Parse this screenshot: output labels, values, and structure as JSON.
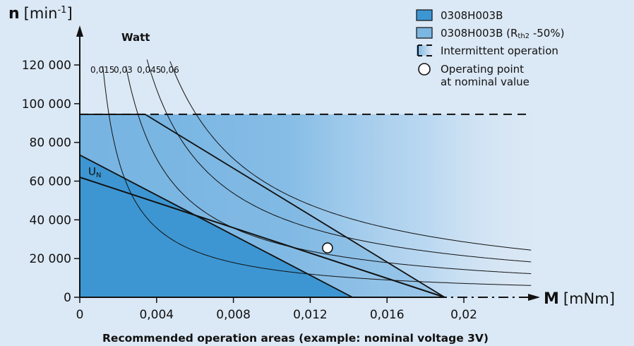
{
  "chart_data": {
    "type": "area",
    "caption": "Recommended operation areas (example: nominal voltage 3V)",
    "y_axis": {
      "title_symbol": "n",
      "title_unit_prefix": "[min",
      "title_unit_sup": "-1",
      "title_unit_suffix": "]",
      "ticks": [
        {
          "value": 0,
          "label": "0"
        },
        {
          "value": 20000,
          "label": "20 000"
        },
        {
          "value": 40000,
          "label": "40 000"
        },
        {
          "value": 60000,
          "label": "60 000"
        },
        {
          "value": 80000,
          "label": "80 000"
        },
        {
          "value": 100000,
          "label": "100 000"
        },
        {
          "value": 120000,
          "label": "120 000"
        }
      ]
    },
    "x_axis": {
      "title_symbol": "M",
      "title_unit": "[mNm]",
      "ticks": [
        {
          "value": 0,
          "label": "0"
        },
        {
          "value": 0.004,
          "label": "0,004"
        },
        {
          "value": 0.008,
          "label": "0,008"
        },
        {
          "value": 0.012,
          "label": "0,012"
        },
        {
          "value": 0.016,
          "label": "0,016"
        },
        {
          "value": 0.02,
          "label": "0,02"
        }
      ]
    },
    "legend": {
      "placement": "top-right",
      "items": [
        {
          "label": "0308H003B",
          "kind": "swatch",
          "color": "#3d96d2"
        },
        {
          "label_main": "0308H003B (R",
          "label_sub": "th2",
          "label_tail": " -50%)",
          "kind": "swatch",
          "color": "#7cb6e2"
        },
        {
          "label": "Intermittent operation",
          "kind": "intermittent"
        },
        {
          "label_line1": "Operating point",
          "label_line2": "at nominal value",
          "kind": "circle"
        }
      ]
    },
    "power_title": "Watt",
    "power_curves": [
      {
        "label": "0,015",
        "watts": 0.015
      },
      {
        "label": "0,03",
        "watts": 0.03
      },
      {
        "label": "0,045",
        "watts": 0.045
      },
      {
        "label": "0,06",
        "watts": 0.06
      }
    ],
    "areas": [
      {
        "name": "0308H003B",
        "color": "#3d96d2",
        "points": [
          [
            0,
            73500
          ],
          [
            0.0142,
            0
          ]
        ]
      },
      {
        "name": "0308H003B (Rth2 -50%)",
        "color": "#7cb6e2",
        "points": [
          [
            0,
            94500
          ],
          [
            0.0034,
            94500
          ],
          [
            0.019,
            0
          ]
        ]
      }
    ],
    "intermittent_limit": {
      "speed": 94500,
      "torque_end": 0.0235
    },
    "un_line": {
      "label_main": "U",
      "label_sub": "N",
      "points": [
        [
          0,
          62000
        ],
        [
          0.019,
          0
        ]
      ]
    },
    "operating_point": {
      "torque": 0.0129,
      "speed": 25500
    },
    "colors": {
      "background": "#dbe8f5",
      "area_dark": "#3d96d2",
      "area_light": "#7cb6e2",
      "axis": "#111111"
    }
  }
}
